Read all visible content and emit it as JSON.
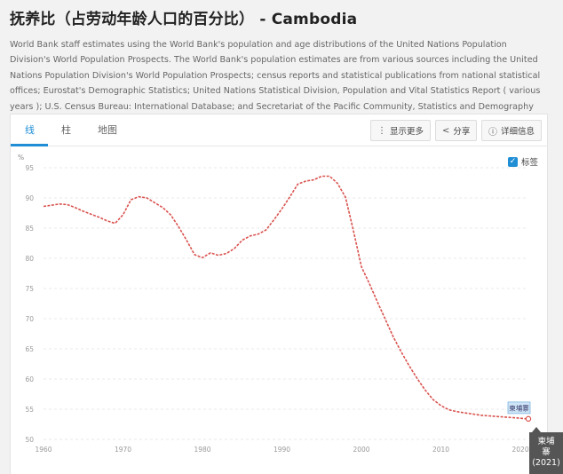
{
  "page": {
    "title": "抚养比（占劳动年龄人口的百分比） - Cambodia",
    "source": "World Bank staff estimates using the World Bank's population and age distributions of the United Nations Population Division's World Population Prospects. The World Bank's population estimates are from various sources including the United Nations Population Division's World Population Prospects; census reports and statistical publications from national statistical offices; Eurostat's Demographic Statistics; United Nations Statistical Division, Population and Vital Statistics Report ( various years ); U.S. Census Bureau: International Database; and Secretariat of the Pacific Community, Statistics and Demography Programme."
  },
  "tabs": [
    {
      "label": "线"
    },
    {
      "label": "柱"
    },
    {
      "label": "地图"
    }
  ],
  "toolbar": {
    "more_label": "显示更多",
    "share_label": "分享",
    "details_label": "详细信息",
    "labels_toggle": "标签"
  },
  "colors": {
    "accent": "#1f8ed5",
    "line": "#d9534f"
  },
  "chart_data": {
    "type": "line",
    "ylabel": "%",
    "xlim": [
      1960,
      2021
    ],
    "ylim": [
      50,
      95
    ],
    "yticks": [
      95,
      90,
      85,
      80,
      75,
      70,
      65,
      60,
      55,
      50
    ],
    "xticks": [
      1960,
      1970,
      1980,
      1990,
      2000,
      2010,
      2020
    ],
    "grid": true,
    "series": [
      {
        "name": "柬埔寨",
        "x": [
          1960,
          1961,
          1962,
          1963,
          1964,
          1965,
          1966,
          1967,
          1968,
          1969,
          1970,
          1971,
          1972,
          1973,
          1974,
          1975,
          1976,
          1977,
          1978,
          1979,
          1980,
          1981,
          1982,
          1983,
          1984,
          1985,
          1986,
          1987,
          1988,
          1989,
          1990,
          1991,
          1992,
          1993,
          1994,
          1995,
          1996,
          1997,
          1998,
          1999,
          2000,
          2001,
          2002,
          2003,
          2004,
          2005,
          2006,
          2007,
          2008,
          2009,
          2010,
          2011,
          2012,
          2013,
          2014,
          2015,
          2016,
          2017,
          2018,
          2019,
          2020,
          2021
        ],
        "values": [
          88.6,
          88.8,
          89.0,
          88.9,
          88.4,
          87.8,
          87.3,
          86.8,
          86.2,
          85.8,
          87.2,
          89.7,
          90.2,
          90.0,
          89.2,
          88.4,
          87.2,
          85.2,
          83.0,
          80.6,
          80.1,
          80.9,
          80.5,
          80.8,
          81.6,
          83.0,
          83.7,
          84.0,
          84.7,
          86.4,
          88.2,
          90.2,
          92.3,
          92.8,
          93.0,
          93.6,
          93.6,
          92.4,
          90.1,
          84.5,
          78.6,
          75.8,
          72.8,
          69.9,
          67.0,
          64.5,
          62.2,
          60.1,
          58.2,
          56.6,
          55.6,
          54.9,
          54.6,
          54.4,
          54.2,
          54.0,
          53.9,
          53.8,
          53.7,
          53.6,
          53.5,
          53.4
        ]
      }
    ],
    "tooltip": {
      "series": "柬埔寨",
      "year": "(2021)"
    }
  }
}
